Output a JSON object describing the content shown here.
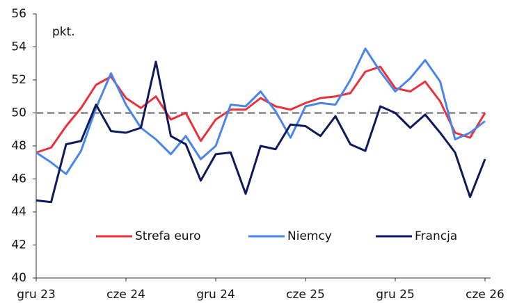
{
  "chart_data": {
    "type": "line",
    "ylabel": "pkt.",
    "categories": [
      "gru 23",
      null,
      null,
      null,
      null,
      null,
      "cze 24",
      null,
      null,
      null,
      null,
      null,
      "gru 24",
      null,
      null,
      null,
      null,
      null,
      "cze 25",
      null,
      null,
      null,
      null,
      null,
      "gru 25",
      null,
      null,
      null,
      null,
      null,
      "cze 26"
    ],
    "series": [
      {
        "name": "Strefa euro",
        "color": "#e8323c",
        "values": [
          47.6,
          47.9,
          49.2,
          50.3,
          51.7,
          52.2,
          50.9,
          50.3,
          51.0,
          49.6,
          50.0,
          48.3,
          49.6,
          50.2,
          50.2,
          50.9,
          50.4,
          50.2,
          50.6,
          50.9,
          51.0,
          51.2,
          52.5,
          52.8,
          51.5,
          51.3,
          51.9,
          50.7,
          48.8,
          48.5,
          50.0
        ]
      },
      {
        "name": "Niemcy",
        "color": "#4a86e8",
        "values": [
          47.6,
          47.0,
          46.3,
          47.7,
          50.3,
          52.4,
          50.5,
          49.1,
          48.4,
          47.5,
          48.6,
          47.2,
          48.0,
          50.5,
          50.4,
          51.3,
          50.1,
          48.5,
          50.4,
          50.6,
          50.5,
          52.0,
          53.9,
          52.5,
          51.3,
          52.1,
          53.2,
          51.9,
          48.4,
          48.8,
          49.5
        ]
      },
      {
        "name": "Francja",
        "color": "#0d1a5c",
        "values": [
          44.7,
          44.6,
          48.1,
          48.3,
          50.5,
          48.9,
          48.8,
          49.1,
          53.1,
          48.6,
          48.1,
          45.9,
          47.5,
          47.6,
          45.1,
          48.0,
          47.8,
          49.3,
          49.2,
          48.6,
          49.8,
          48.1,
          47.7,
          50.4,
          50.0,
          49.1,
          49.9,
          48.8,
          47.6,
          44.9,
          47.2
        ]
      }
    ],
    "reference_line": {
      "value": 50,
      "color": "#999999"
    },
    "ylim": [
      40,
      56
    ],
    "yticks": [
      40,
      42,
      44,
      46,
      48,
      50,
      52,
      54,
      56
    ],
    "grid": false,
    "legend": "bottom"
  }
}
